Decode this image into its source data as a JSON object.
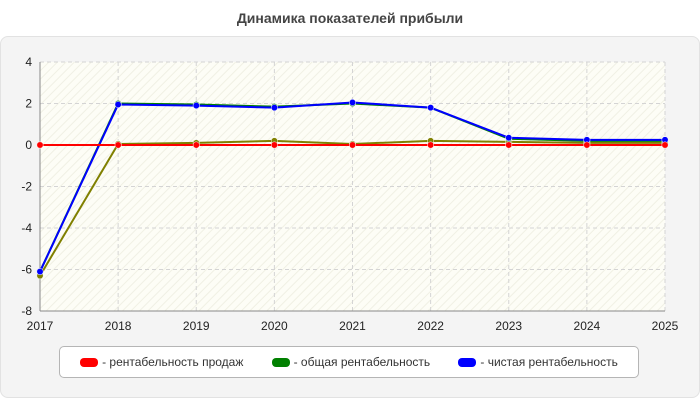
{
  "chart_data": {
    "type": "line",
    "title": "Динамика показателей прибыли",
    "x": [
      "2017",
      "2018",
      "2019",
      "2020",
      "2021",
      "2022",
      "2023",
      "2024",
      "2025"
    ],
    "ylim": [
      -8,
      4
    ],
    "yticks": [
      -8,
      -6,
      -4,
      -2,
      0,
      2,
      4
    ],
    "grid": true,
    "legend_position": "bottom",
    "series": [
      {
        "name": "- рентабельность продаж",
        "color": "#ff0000",
        "values": [
          0,
          0,
          0,
          0,
          0,
          0,
          0,
          0,
          0
        ]
      },
      {
        "name": "- общая рентабельность",
        "color": "#008000",
        "values": [
          -6.1,
          2.0,
          1.95,
          1.85,
          2.0,
          1.8,
          0.3,
          0.2,
          0.2
        ]
      },
      {
        "name": "- чистая рентабельность",
        "color": "#0000ff",
        "values": [
          -6.1,
          1.95,
          1.9,
          1.8,
          2.05,
          1.8,
          0.35,
          0.25,
          0.25
        ]
      },
      {
        "name": "",
        "color": "#808000",
        "values": [
          -6.3,
          0.05,
          0.1,
          0.2,
          0.05,
          0.2,
          0.15,
          0.1,
          0.1
        ]
      }
    ]
  }
}
